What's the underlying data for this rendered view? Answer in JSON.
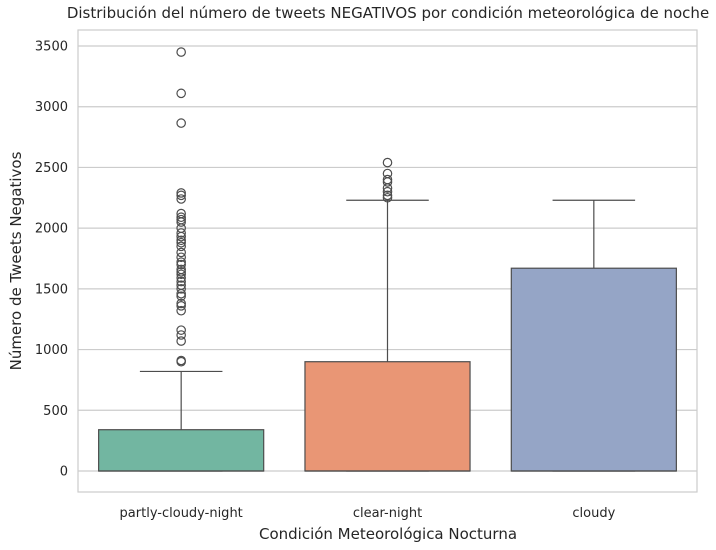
{
  "chart_data": {
    "type": "box",
    "title": "Distribución del número de tweets NEGATIVOS por condición meteorológica de noche",
    "xlabel": "Condición Meteorológica Nocturna",
    "ylabel": "Número de Tweets Negativos",
    "ylim": [
      -170,
      3620
    ],
    "yticks": [
      0,
      500,
      1000,
      1500,
      2000,
      2500,
      3000,
      3500
    ],
    "grid": true,
    "categories": [
      "partly-cloudy-night",
      "clear-night",
      "cloudy"
    ],
    "boxes": [
      {
        "category": "partly-cloudy-night",
        "color": "#72b6a1",
        "whisker_low": 0,
        "q1": 0,
        "median": 0,
        "q3": 340,
        "whisker_high": 820,
        "outliers": [
          3450,
          3110,
          2865,
          2290,
          2270,
          2240,
          2120,
          2090,
          2070,
          2050,
          2000,
          1960,
          1930,
          1900,
          1880,
          1850,
          1800,
          1760,
          1720,
          1700,
          1660,
          1640,
          1620,
          1590,
          1560,
          1530,
          1500,
          1460,
          1440,
          1380,
          1360,
          1320,
          1160,
          1120,
          1070,
          910,
          900
        ]
      },
      {
        "category": "clear-night",
        "color": "#e99675",
        "whisker_low": 0,
        "q1": 0,
        "median": 0,
        "q3": 900,
        "whisker_high": 2230,
        "outliers": [
          2540,
          2450,
          2400,
          2380,
          2330,
          2300,
          2270,
          2250
        ]
      },
      {
        "category": "cloudy",
        "color": "#95a5c6",
        "whisker_low": 0,
        "q1": 0,
        "median": 0,
        "q3": 1670,
        "whisker_high": 2230,
        "outliers": []
      }
    ]
  }
}
